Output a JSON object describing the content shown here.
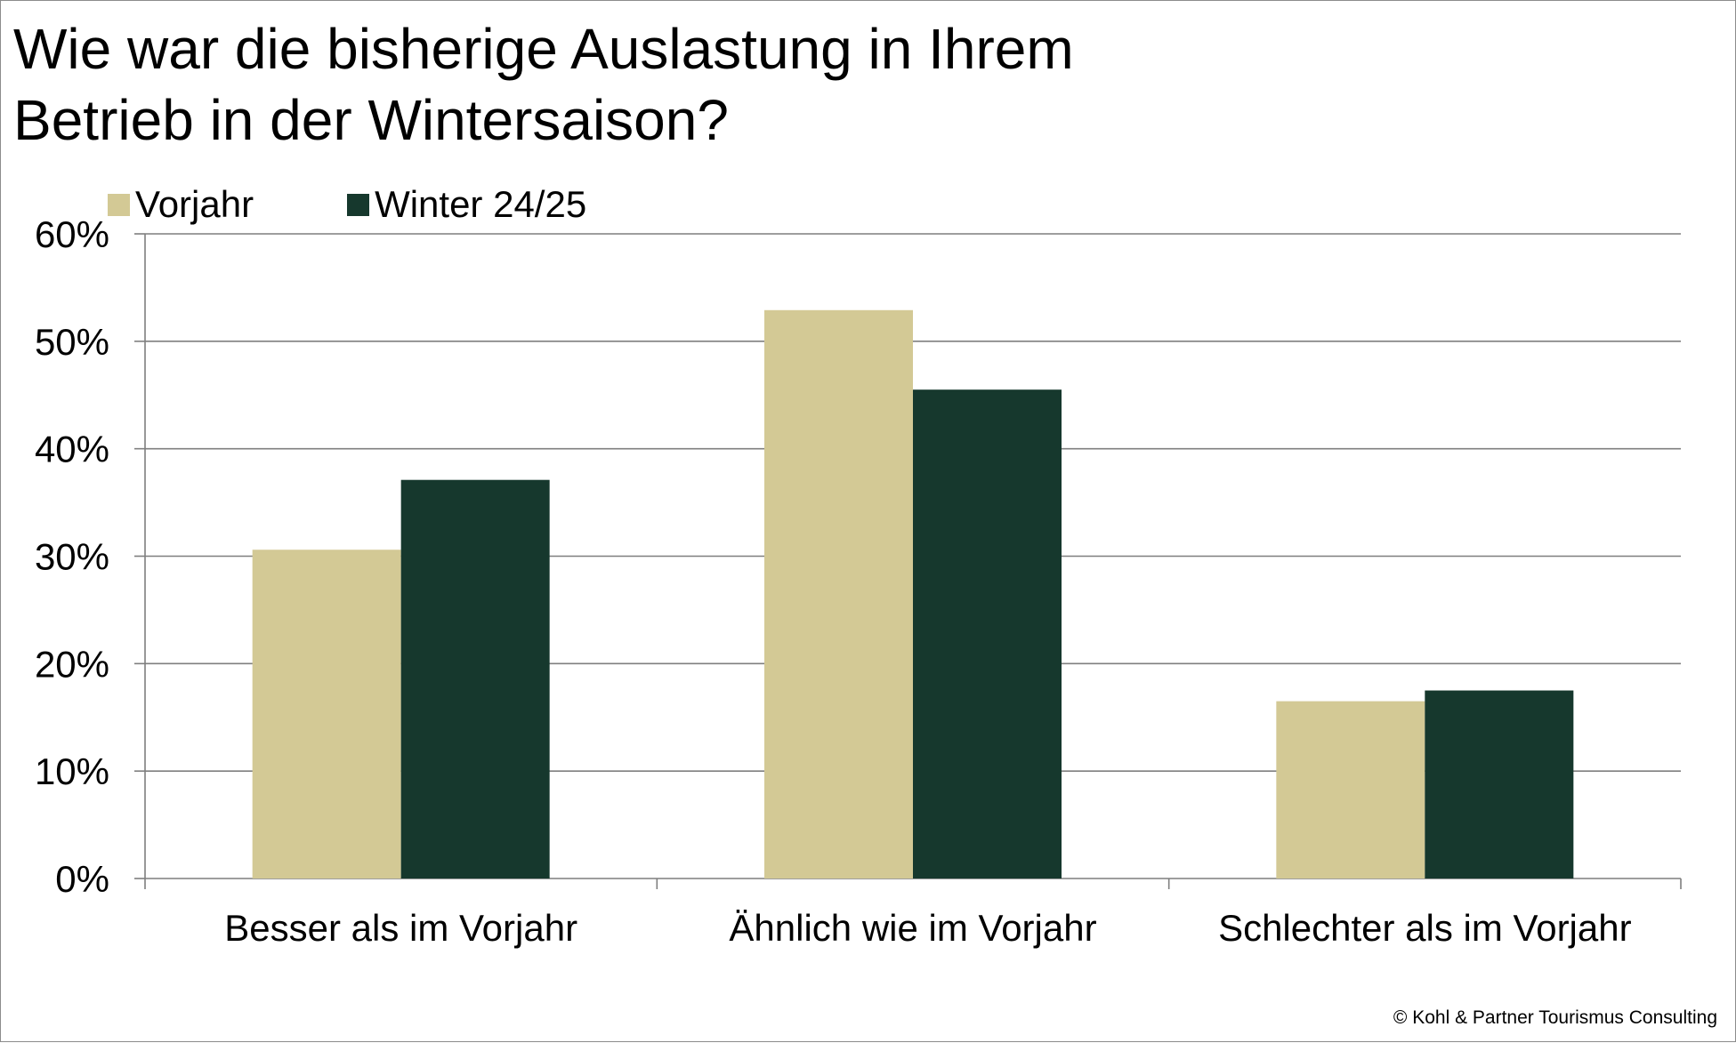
{
  "title_lines": [
    "Wie war die bisherige Auslastung in Ihrem",
    "Betrieb in der Wintersaison?"
  ],
  "copyright": "© Kohl & Partner Tourismus Consulting",
  "chart_data": {
    "type": "bar",
    "title": "Wie war die bisherige Auslastung in Ihrem Betrieb in der Wintersaison?",
    "categories": [
      "Besser als im Vorjahr",
      "Ähnlich wie im Vorjahr",
      "Schlechter als im Vorjahr"
    ],
    "series": [
      {
        "name": "Vorjahr",
        "values": [
          30.6,
          52.9,
          16.5
        ],
        "color": "#d3c995"
      },
      {
        "name": "Winter 24/25",
        "values": [
          37.1,
          45.5,
          17.5
        ],
        "color": "#16382d"
      }
    ],
    "ylim": [
      0,
      60
    ],
    "yticks": [
      0,
      10,
      20,
      30,
      40,
      50,
      60
    ],
    "ytick_labels": [
      "0%",
      "10%",
      "20%",
      "30%",
      "40%",
      "50%",
      "60%"
    ],
    "grid": true,
    "legend_position": "top-left"
  }
}
